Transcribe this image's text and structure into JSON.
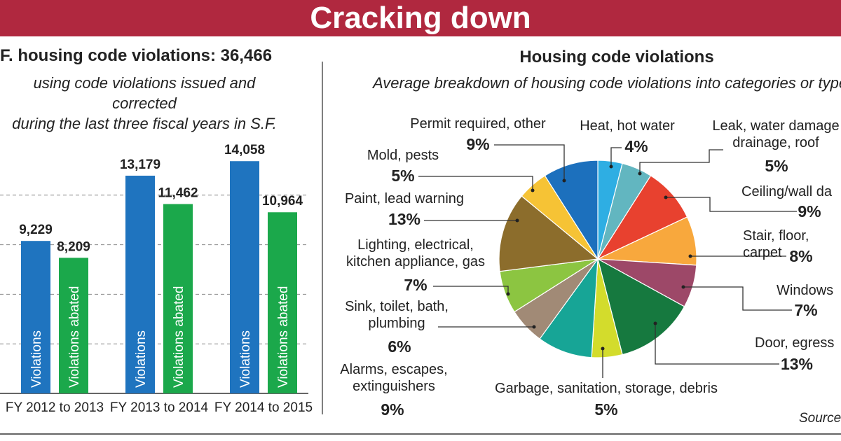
{
  "header": {
    "title": "Cracking down"
  },
  "chart_data": [
    {
      "type": "bar",
      "title": "F. housing code violations: 36,466",
      "subtitle": "using code violations issued and corrected\nduring the last three fiscal years in S.F.",
      "categories": [
        "FY 2012 to 2013",
        "FY 2013 to 2014",
        "FY 2014 to 2015"
      ],
      "series": [
        {
          "name": "Violations",
          "color": "#1f74bf",
          "values": [
            9229,
            13179,
            14058
          ],
          "value_labels": [
            "9,229",
            "13,179",
            "14,058"
          ]
        },
        {
          "name": "Violations abated",
          "color": "#1ba84b",
          "values": [
            8209,
            11462,
            10964
          ],
          "value_labels": [
            "8,209",
            "11,462",
            "10,964"
          ]
        }
      ],
      "ylim": [
        0,
        15000
      ],
      "yticks": [
        0,
        3000,
        6000,
        9000,
        12000
      ],
      "grid": true
    },
    {
      "type": "pie",
      "title": "Housing code violations",
      "subtitle": "Average breakdown of housing code violations into categories or type",
      "categories": [
        "Heat, hot water",
        "Leak, water damage\ndrainage, roof",
        "Ceiling/wall da",
        "Stair, floor, carpet",
        "Windows",
        "Door, egress",
        "Garbage, sanitation, storage, debris",
        "Alarms, escapes,\nextinguishers",
        "Sink, toilet, bath,\nplumbing",
        "Lighting, electrical,\nkitchen appliance, gas",
        "Paint, lead warning",
        "Mold, pests",
        "Permit required, other"
      ],
      "values": [
        4,
        5,
        9,
        8,
        7,
        13,
        5,
        9,
        6,
        7,
        13,
        5,
        9
      ],
      "value_labels": [
        "4%",
        "5%",
        "9%",
        "8%",
        "7%",
        "13%",
        "5%",
        "9%",
        "6%",
        "7%",
        "13%",
        "5%",
        "9%"
      ],
      "colors": [
        "#2eaee3",
        "#62b6c0",
        "#e8412f",
        "#f8a83d",
        "#9d4868",
        "#16793f",
        "#d3dc2c",
        "#17a596",
        "#a18a76",
        "#8cc541",
        "#8c6d2c",
        "#f6c335",
        "#1c70bd"
      ]
    }
  ],
  "source": "Source"
}
